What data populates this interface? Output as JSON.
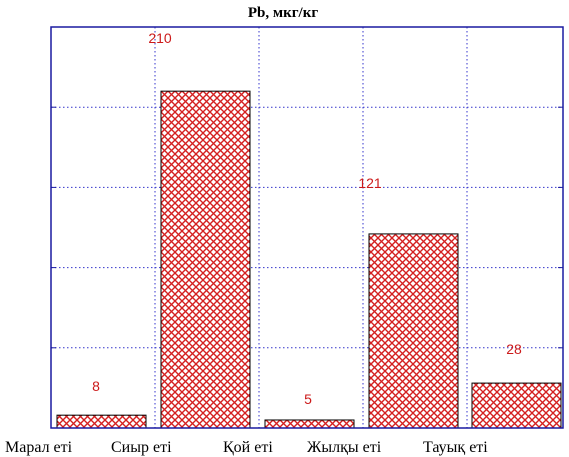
{
  "chart_data": {
    "type": "bar",
    "title": "Pb, мкг/кг",
    "categories": [
      "Марал еті",
      "Сиыр еті",
      "Қой еті",
      "Жылқы еті",
      "Тауық еті"
    ],
    "values": [
      8,
      210,
      5,
      121,
      28
    ],
    "xlabel": "",
    "ylabel": "",
    "ylim": [
      0,
      250
    ],
    "grid": true,
    "legend": "none",
    "colors": {
      "bar_pattern": "#d42020",
      "bar_fill": "#ffffff",
      "bar_edge": "#000000",
      "data_label": "#cc1a1a",
      "grid": "#3333cc",
      "axis": "#1a1aa0"
    }
  }
}
